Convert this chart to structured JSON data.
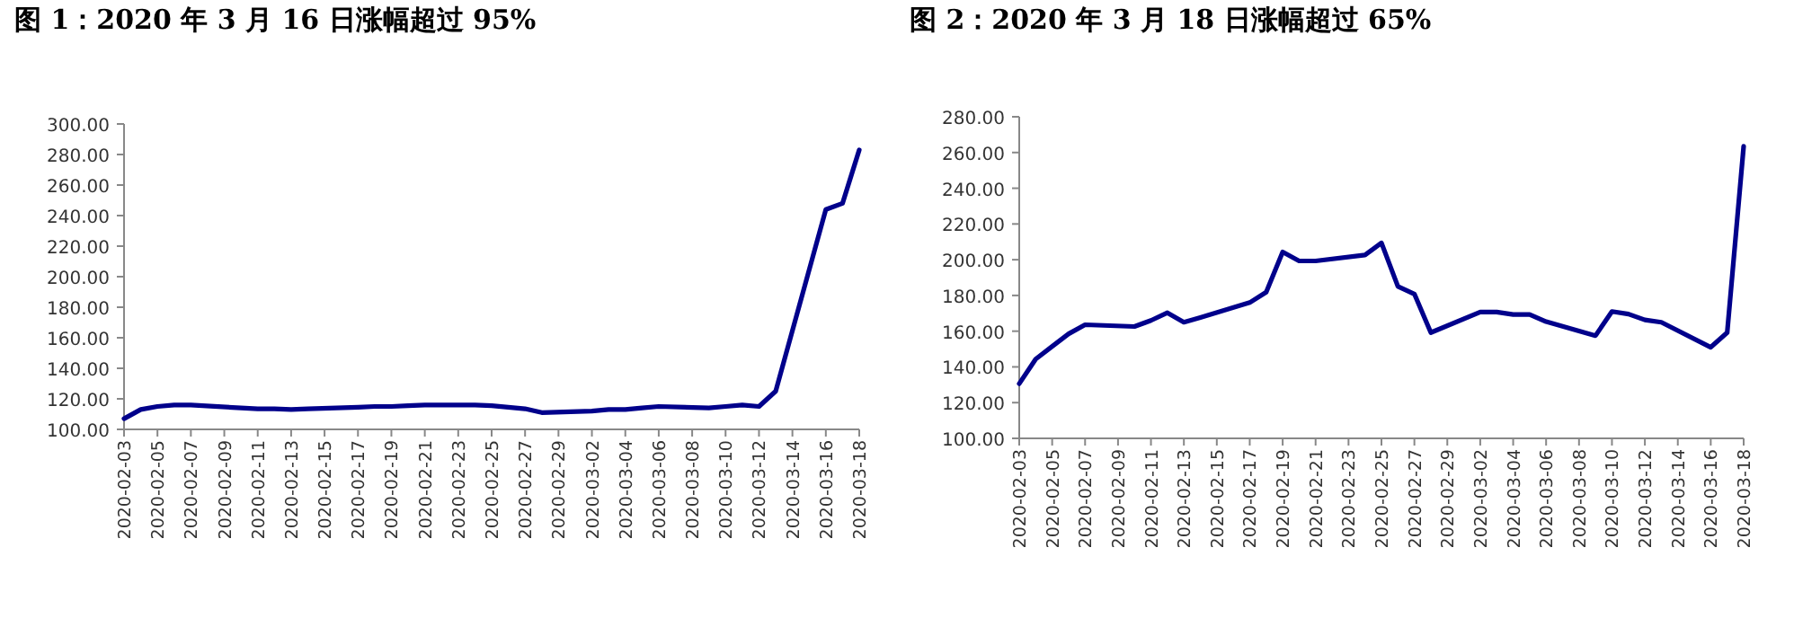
{
  "chart_data": [
    {
      "type": "line",
      "title": "图 1：2020 年 3 月 16 日涨幅超过 95%",
      "x": [
        "2020-02-03",
        "2020-02-04",
        "2020-02-05",
        "2020-02-06",
        "2020-02-07",
        "2020-02-10",
        "2020-02-11",
        "2020-02-12",
        "2020-02-13",
        "2020-02-14",
        "2020-02-17",
        "2020-02-18",
        "2020-02-19",
        "2020-02-20",
        "2020-02-21",
        "2020-02-24",
        "2020-02-25",
        "2020-02-26",
        "2020-02-27",
        "2020-02-28",
        "2020-03-02",
        "2020-03-03",
        "2020-03-04",
        "2020-03-05",
        "2020-03-06",
        "2020-03-09",
        "2020-03-10",
        "2020-03-11",
        "2020-03-12",
        "2020-03-13",
        "2020-03-16",
        "2020-03-17",
        "2020-03-18"
      ],
      "series": [
        {
          "color": "#00008b",
          "values": [
            107,
            113,
            115,
            116,
            116,
            114,
            113.5,
            113.5,
            113,
            113.5,
            114.5,
            115,
            115,
            115.5,
            116,
            116,
            115.5,
            114.5,
            113.5,
            111,
            112,
            113,
            113,
            114,
            115,
            114,
            115,
            116,
            115,
            125,
            244,
            248,
            283
          ]
        }
      ],
      "xlim": [
        "2020-02-03",
        "2020-03-18"
      ],
      "xticks": [
        "2020-02-03",
        "2020-02-05",
        "2020-02-07",
        "2020-02-09",
        "2020-02-11",
        "2020-02-13",
        "2020-02-15",
        "2020-02-17",
        "2020-02-19",
        "2020-02-21",
        "2020-02-23",
        "2020-02-25",
        "2020-02-27",
        "2020-02-29",
        "2020-03-02",
        "2020-03-04",
        "2020-03-06",
        "2020-03-08",
        "2020-03-10",
        "2020-03-12",
        "2020-03-14",
        "2020-03-16",
        "2020-03-18"
      ],
      "ylim": [
        100,
        300
      ],
      "yticks": [
        {
          "value": 100,
          "label": "100.00"
        },
        {
          "value": 120,
          "label": "120.00"
        },
        {
          "value": 140,
          "label": "140.00"
        },
        {
          "value": 160,
          "label": "160.00"
        },
        {
          "value": 180,
          "label": "180.00"
        },
        {
          "value": 200,
          "label": "200.00"
        },
        {
          "value": 220,
          "label": "220.00"
        },
        {
          "value": 240,
          "label": "240.00"
        },
        {
          "value": 260,
          "label": "260.00"
        },
        {
          "value": 280,
          "label": "280.00"
        },
        {
          "value": 300,
          "label": "300.00"
        }
      ],
      "grid": false
    },
    {
      "type": "line",
      "title": "图 2：2020 年 3 月 18 日涨幅超过 65%",
      "x": [
        "2020-02-03",
        "2020-02-04",
        "2020-02-05",
        "2020-02-06",
        "2020-02-07",
        "2020-02-10",
        "2020-02-11",
        "2020-02-12",
        "2020-02-13",
        "2020-02-14",
        "2020-02-17",
        "2020-02-18",
        "2020-02-19",
        "2020-02-20",
        "2020-02-21",
        "2020-02-24",
        "2020-02-25",
        "2020-02-26",
        "2020-02-27",
        "2020-02-28",
        "2020-03-02",
        "2020-03-03",
        "2020-03-04",
        "2020-03-05",
        "2020-03-06",
        "2020-03-09",
        "2020-03-10",
        "2020-03-11",
        "2020-03-12",
        "2020-03-13",
        "2020-03-16",
        "2020-03-17",
        "2020-03-18"
      ],
      "series": [
        {
          "color": "#00008b",
          "values": [
            130.6,
            144.4,
            151.5,
            158.5,
            163.6,
            162.6,
            166,
            170.3,
            165,
            167.6,
            176,
            181.8,
            204.3,
            199.3,
            199.3,
            202.6,
            209.4,
            185,
            180.8,
            159.2,
            170.7,
            170.7,
            169.3,
            169.3,
            165.3,
            157.5,
            171,
            169.6,
            166.3,
            165,
            151,
            159.2,
            263.5
          ]
        }
      ],
      "xlim": [
        "2020-02-03",
        "2020-03-18"
      ],
      "xticks": [
        "2020-02-03",
        "2020-02-05",
        "2020-02-07",
        "2020-02-09",
        "2020-02-11",
        "2020-02-13",
        "2020-02-15",
        "2020-02-17",
        "2020-02-19",
        "2020-02-21",
        "2020-02-23",
        "2020-02-25",
        "2020-02-27",
        "2020-02-29",
        "2020-03-02",
        "2020-03-04",
        "2020-03-06",
        "2020-03-08",
        "2020-03-10",
        "2020-03-12",
        "2020-03-14",
        "2020-03-16",
        "2020-03-18"
      ],
      "ylim": [
        100,
        280
      ],
      "yticks": [
        {
          "value": 100,
          "label": "100.00"
        },
        {
          "value": 120,
          "label": "120.00"
        },
        {
          "value": 140,
          "label": "140.00"
        },
        {
          "value": 160,
          "label": "160.00"
        },
        {
          "value": 180,
          "label": "180.00"
        },
        {
          "value": 200,
          "label": "200.00"
        },
        {
          "value": 220,
          "label": "220.00"
        },
        {
          "value": 240,
          "label": "240.00"
        },
        {
          "value": 260,
          "label": "260.00"
        },
        {
          "value": 280,
          "label": "280.00"
        }
      ],
      "grid": false
    }
  ]
}
